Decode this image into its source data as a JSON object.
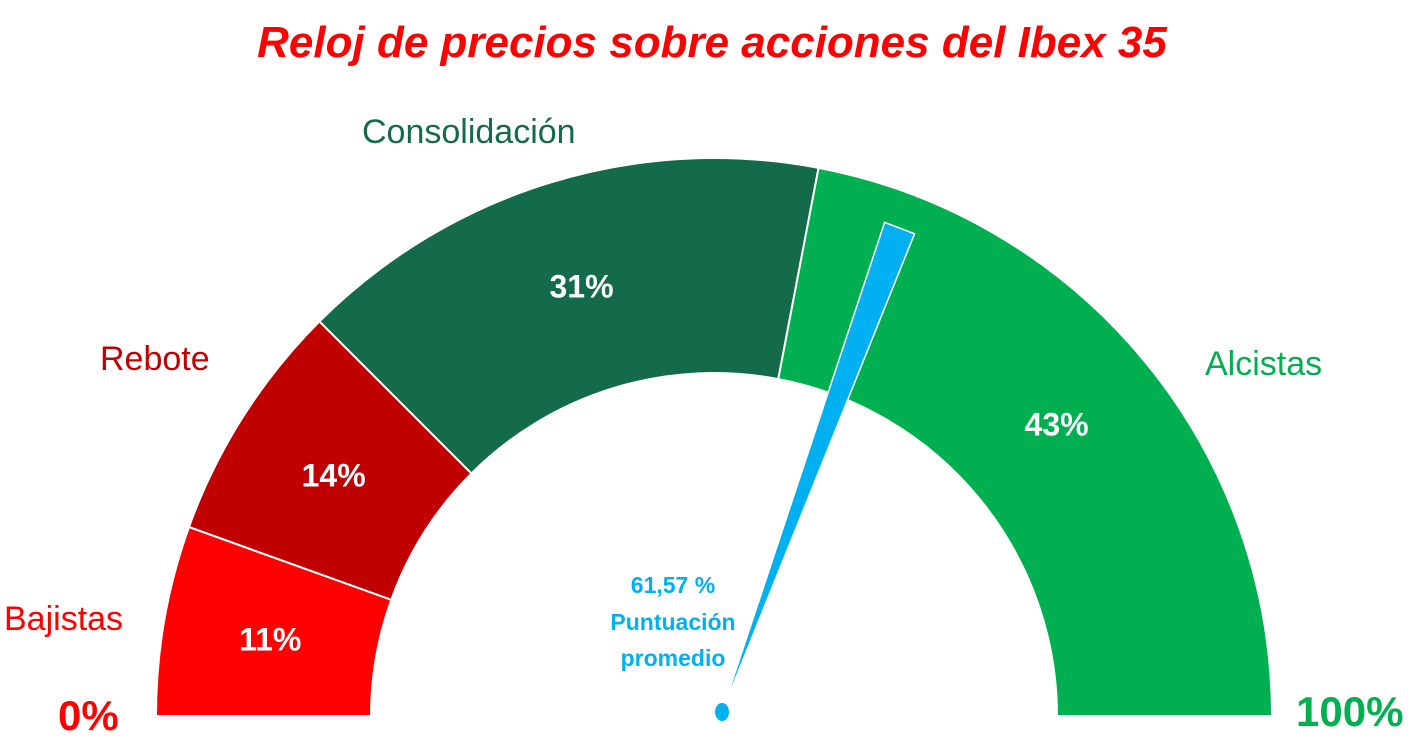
{
  "title": "Reloj de precios sobre acciones del Ibex 35",
  "chart_data": {
    "type": "gauge",
    "title": "Reloj de precios sobre acciones del Ibex 35",
    "range": [
      0,
      100
    ],
    "min_label": "0%",
    "max_label": "100%",
    "segments": [
      {
        "name": "Bajistas",
        "value": 11,
        "label": "11%",
        "color": "#ff0000",
        "name_color": "#ff0000"
      },
      {
        "name": "Rebote",
        "value": 14,
        "label": "14%",
        "color": "#c00000",
        "name_color": "#c00000"
      },
      {
        "name": "Consolidación",
        "value": 31,
        "label": "31%",
        "color": "#146b4a",
        "name_color": "#146b4a"
      },
      {
        "name": "Alcistas",
        "value": 43,
        "label": "43%",
        "color": "#00b050",
        "name_color": "#00b050"
      }
    ],
    "needle": {
      "value": 61.57,
      "value_text": "61,57 %",
      "caption_line1": "Puntuación",
      "caption_line2": "promedio",
      "color": "#00b0f0"
    }
  }
}
